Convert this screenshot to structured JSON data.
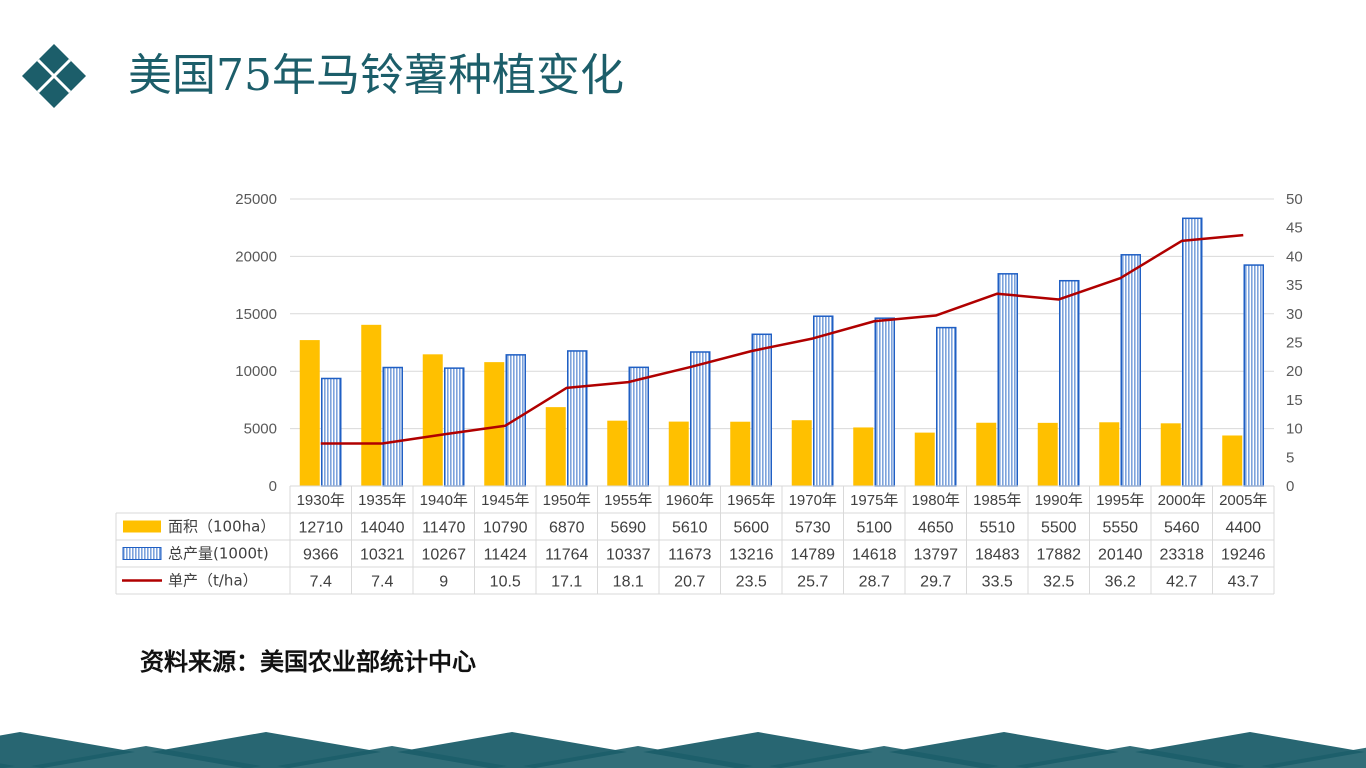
{
  "title": "美国75年马铃薯种植变化",
  "source": "资料来源：美国农业部统计中心",
  "colors": {
    "accent": "#1c5e6a",
    "area": "#ffc000",
    "total_fill": "#bcd1ee",
    "total_stroke": "#1f5fc4",
    "yield_line": "#b00000"
  },
  "chart_data": {
    "type": "bar",
    "categories": [
      "1930年",
      "1935年",
      "1940年",
      "1945年",
      "1950年",
      "1955年",
      "1960年",
      "1965年",
      "1970年",
      "1975年",
      "1980年",
      "1985年",
      "1990年",
      "1995年",
      "2000年",
      "2005年"
    ],
    "series": [
      {
        "name": "面积（100ha）",
        "type": "bar",
        "axis": "left",
        "values": [
          12710,
          14040,
          11470,
          10790,
          6870,
          5690,
          5610,
          5600,
          5730,
          5100,
          4650,
          5510,
          5500,
          5550,
          5460,
          4400
        ]
      },
      {
        "name": "总产量(1000t)",
        "type": "bar",
        "axis": "left",
        "values": [
          9366,
          10321,
          10267,
          11424,
          11764,
          10337,
          11673,
          13216,
          14789,
          14618,
          13797,
          18483,
          17882,
          20140,
          23318,
          19246
        ]
      },
      {
        "name": "单产（t/ha）",
        "type": "line",
        "axis": "right",
        "values": [
          7.4,
          7.4,
          9,
          10.5,
          17.1,
          18.1,
          20.7,
          23.5,
          25.7,
          28.7,
          29.7,
          33.5,
          32.5,
          36.2,
          42.7,
          43.7
        ]
      }
    ],
    "y_left": {
      "min": 0,
      "max": 25000,
      "ticks": [
        0,
        5000,
        10000,
        15000,
        20000,
        25000
      ]
    },
    "y_right": {
      "min": 0,
      "max": 50,
      "ticks": [
        0,
        5,
        10,
        15,
        20,
        25,
        30,
        35,
        40,
        45,
        50
      ]
    },
    "grid": true,
    "data_table": true
  }
}
